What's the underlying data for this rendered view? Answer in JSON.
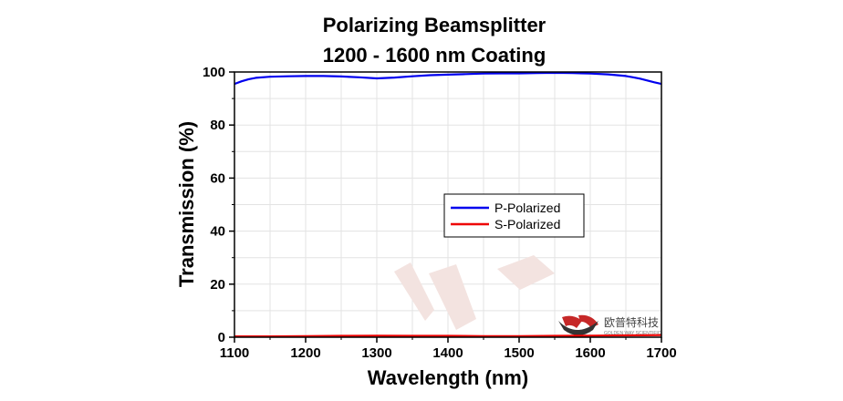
{
  "chart_data": {
    "type": "line",
    "title": [
      "Polarizing Beamsplitter",
      "1200 - 1600 nm Coating"
    ],
    "xlabel": "Wavelength (nm)",
    "ylabel": "Transmission (%)",
    "xlim": [
      1100,
      1700
    ],
    "ylim": [
      0,
      100
    ],
    "xticks": [
      "1100",
      "1200",
      "1300",
      "1400",
      "1500",
      "1600",
      "1700"
    ],
    "yticks": [
      "0",
      "20",
      "40",
      "60",
      "80",
      "100"
    ],
    "grid": true,
    "legend": {
      "position": "center-right"
    },
    "series": [
      {
        "name": "P-Polarized",
        "color": "#0000ee",
        "x": [
          1100,
          1110,
          1120,
          1130,
          1150,
          1175,
          1200,
          1225,
          1250,
          1275,
          1300,
          1325,
          1350,
          1375,
          1400,
          1425,
          1450,
          1475,
          1500,
          1525,
          1550,
          1575,
          1600,
          1625,
          1650,
          1660,
          1670,
          1680,
          1690,
          1700
        ],
        "values": [
          95.5,
          96.5,
          97.3,
          97.8,
          98.2,
          98.4,
          98.5,
          98.5,
          98.3,
          98.0,
          97.6,
          97.9,
          98.4,
          98.8,
          99.0,
          99.2,
          99.4,
          99.5,
          99.5,
          99.6,
          99.7,
          99.6,
          99.4,
          99.1,
          98.5,
          98.0,
          97.5,
          96.8,
          96.1,
          95.5
        ]
      },
      {
        "name": "S-Polarized",
        "color": "#ee0000",
        "x": [
          1100,
          1150,
          1200,
          1250,
          1300,
          1350,
          1400,
          1450,
          1500,
          1550,
          1600,
          1650,
          1700
        ],
        "values": [
          0.3,
          0.3,
          0.4,
          0.5,
          0.6,
          0.5,
          0.5,
          0.4,
          0.4,
          0.5,
          0.6,
          0.7,
          0.8
        ]
      }
    ]
  },
  "watermark": {
    "brand_cn": "欧普特科技",
    "brand_en": "GOLDEN WAY SCIENTIFIC"
  }
}
